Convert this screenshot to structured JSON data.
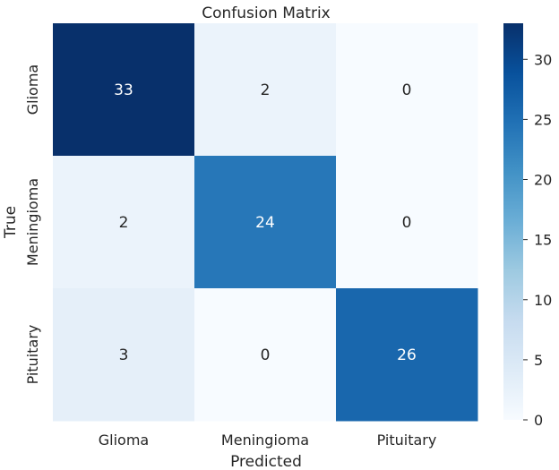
{
  "chart_data": {
    "type": "heatmap",
    "title": "Confusion Matrix",
    "xlabel": "Predicted",
    "ylabel": "True",
    "x_categories": [
      "Glioma",
      "Meningioma",
      "Pituitary"
    ],
    "y_categories": [
      "Glioma",
      "Meningioma",
      "Pituitary"
    ],
    "values": [
      [
        33,
        2,
        0
      ],
      [
        2,
        24,
        0
      ],
      [
        3,
        0,
        26
      ]
    ],
    "colorbar": {
      "min": 0,
      "max": 33,
      "ticks": [
        0,
        5,
        10,
        15,
        20,
        25,
        30
      ]
    },
    "colormap": "Blues",
    "colormap_stops": [
      "#f7fbff",
      "#deebf7",
      "#c6dbef",
      "#9ecae1",
      "#6baed6",
      "#4292c6",
      "#2171b5",
      "#08519c",
      "#08306b"
    ],
    "annotation_colors": {
      "light": "#262626",
      "dark": "#ffffff"
    }
  }
}
